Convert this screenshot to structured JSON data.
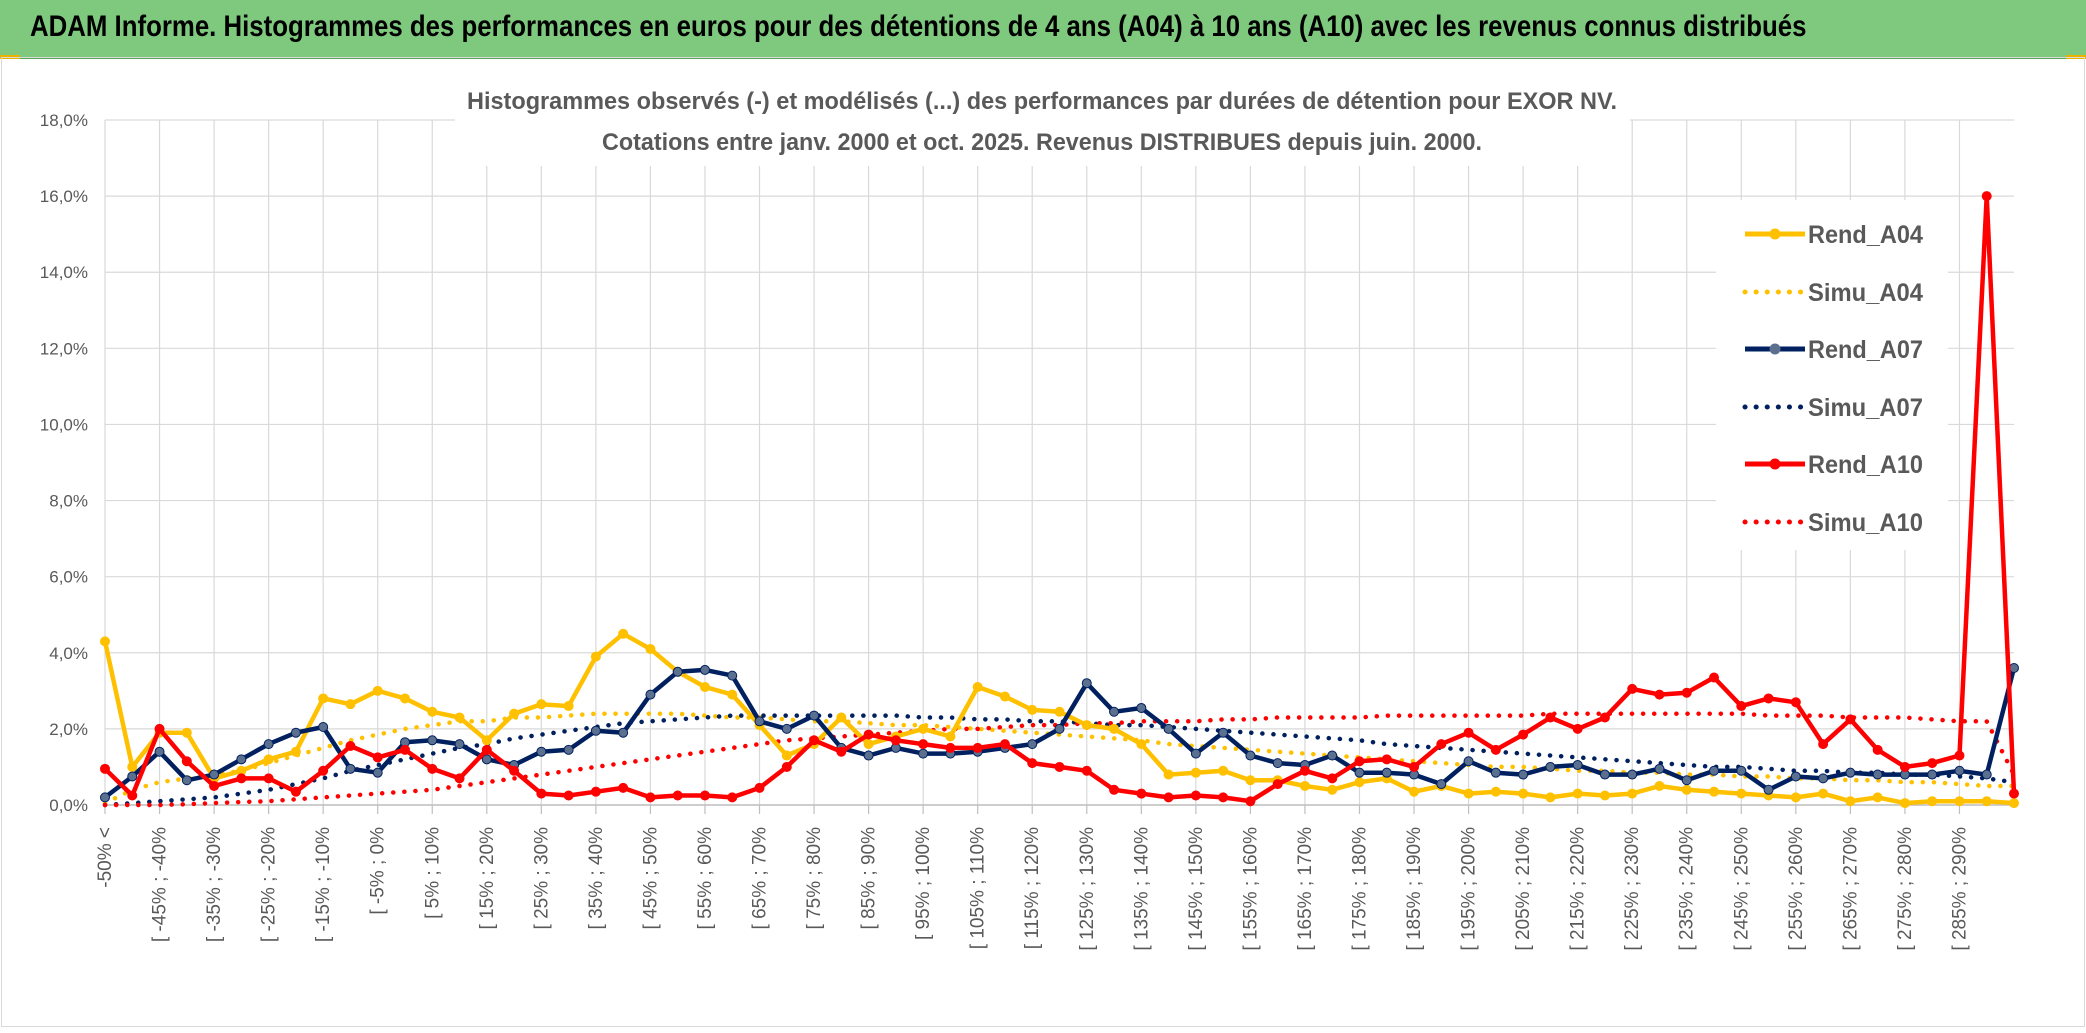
{
  "header": {
    "title": "ADAM Informe. Histogrammes des performances en euros pour des détentions de 4 ans (A04) à 10 ans (A10) avec les revenus connus distribués"
  },
  "colors": {
    "banner": "#7fc97f",
    "A04": "#ffc000",
    "A07": "#002060",
    "A10": "#ff0000",
    "grid": "#d9d9d9"
  },
  "chart_data": {
    "type": "line",
    "title": "Histogrammes observés (-) et modélisés (...) des performances par durées de détention pour EXOR NV.",
    "subtitle": "Cotations entre janv. 2000 et oct. 2025. Revenus DISTRIBUES depuis juin. 2000.",
    "ylim": [
      0,
      18
    ],
    "y_ticks": [
      "0,0%",
      "2,0%",
      "4,0%",
      "6,0%",
      "8,0%",
      "10,0%",
      "12,0%",
      "14,0%",
      "16,0%",
      "18,0%"
    ],
    "grid": true,
    "legend_position": "right",
    "x_tick_labels": [
      "-50% <",
      "[ -45% ; -40%",
      "[ -35% ; -30%",
      "[ -25% ; -20%",
      "[ -15% ; -10%",
      "[ -5% ; 0%",
      "[ 5% ; 10%",
      "[ 15% ; 20%",
      "[ 25% ; 30%",
      "[ 35% ; 40%",
      "[ 45% ; 50%",
      "[ 55% ; 60%",
      "[ 65% ; 70%",
      "[ 75% ; 80%",
      "[ 85% ; 90%",
      "[ 95% ; 100%",
      "[ 105% ; 110%",
      "[ 115% ; 120%",
      "[ 125% ; 130%",
      "[ 135% ; 140%",
      "[ 145% ; 150%",
      "[ 155% ; 160%",
      "[ 165% ; 170%",
      "[ 175% ; 180%",
      "[ 185% ; 190%",
      "[ 195% ; 200%",
      "[ 205% ; 210%",
      "[ 215% ; 220%",
      "[ 225% ; 230%",
      "[ 235% ; 240%",
      "[ 245% ; 250%",
      "[ 255% ; 260%",
      "[ 265% ; 270%",
      "[ 275% ; 280%",
      "[ 285% ; 290%"
    ],
    "n_points": 71,
    "series": [
      {
        "name": "Rend_A04",
        "style": "solid",
        "color": "#ffc000",
        "values": [
          4.3,
          1.0,
          1.9,
          1.9,
          0.7,
          0.9,
          1.2,
          1.4,
          2.8,
          2.65,
          3.0,
          2.8,
          2.45,
          2.3,
          1.7,
          2.4,
          2.65,
          2.6,
          3.9,
          4.5,
          4.1,
          3.5,
          3.1,
          2.9,
          2.1,
          1.3,
          1.6,
          2.3,
          1.6,
          1.8,
          2.0,
          1.8,
          3.1,
          2.85,
          2.5,
          2.45,
          2.1,
          2.0,
          1.6,
          0.8,
          0.85,
          0.9,
          0.65,
          0.65,
          0.5,
          0.4,
          0.6,
          0.7,
          0.35,
          0.5,
          0.3,
          0.35,
          0.3,
          0.2,
          0.3,
          0.25,
          0.3,
          0.5,
          0.4,
          0.35,
          0.3,
          0.25,
          0.2,
          0.3,
          0.1,
          0.2,
          0.05,
          0.1,
          0.1,
          0.1,
          0.05
        ]
      },
      {
        "name": "Simu_A04",
        "style": "dotted",
        "color": "#ffc000",
        "values": [
          0.05,
          0.4,
          0.6,
          0.7,
          0.8,
          0.9,
          1.1,
          1.3,
          1.5,
          1.7,
          1.85,
          2.0,
          2.1,
          2.2,
          2.2,
          2.3,
          2.3,
          2.35,
          2.4,
          2.4,
          2.4,
          2.4,
          2.35,
          2.3,
          2.3,
          2.25,
          2.2,
          2.2,
          2.15,
          2.1,
          2.1,
          2.05,
          2.0,
          1.95,
          1.9,
          1.85,
          1.8,
          1.75,
          1.7,
          1.6,
          1.55,
          1.5,
          1.45,
          1.4,
          1.35,
          1.3,
          1.25,
          1.2,
          1.15,
          1.1,
          1.05,
          1.0,
          1.0,
          0.95,
          0.9,
          0.9,
          0.85,
          0.85,
          0.8,
          0.8,
          0.75,
          0.75,
          0.7,
          0.7,
          0.65,
          0.65,
          0.6,
          0.6,
          0.55,
          0.5,
          0.5
        ]
      },
      {
        "name": "Rend_A07",
        "style": "solid",
        "color": "#002060",
        "values": [
          0.2,
          0.75,
          1.4,
          0.65,
          0.8,
          1.2,
          1.6,
          1.9,
          2.05,
          0.95,
          0.85,
          1.65,
          1.7,
          1.6,
          1.2,
          1.05,
          1.4,
          1.45,
          1.95,
          1.9,
          2.9,
          3.5,
          3.55,
          3.4,
          2.2,
          2.0,
          2.35,
          1.5,
          1.3,
          1.5,
          1.35,
          1.35,
          1.4,
          1.5,
          1.6,
          2.0,
          3.2,
          2.45,
          2.55,
          2.0,
          1.35,
          1.9,
          1.3,
          1.1,
          1.05,
          1.3,
          0.85,
          0.85,
          0.8,
          0.55,
          1.15,
          0.85,
          0.8,
          1.0,
          1.05,
          0.8,
          0.8,
          0.95,
          0.65,
          0.9,
          0.9,
          0.4,
          0.75,
          0.7,
          0.85,
          0.8,
          0.8,
          0.8,
          0.9,
          0.8,
          3.6
        ]
      },
      {
        "name": "Simu_A07",
        "style": "dotted",
        "color": "#002060",
        "values": [
          0.0,
          0.05,
          0.1,
          0.15,
          0.2,
          0.3,
          0.4,
          0.55,
          0.7,
          0.9,
          1.05,
          1.2,
          1.35,
          1.5,
          1.6,
          1.75,
          1.85,
          1.95,
          2.05,
          2.15,
          2.2,
          2.25,
          2.3,
          2.35,
          2.35,
          2.35,
          2.35,
          2.35,
          2.35,
          2.35,
          2.3,
          2.3,
          2.25,
          2.25,
          2.2,
          2.2,
          2.15,
          2.1,
          2.1,
          2.05,
          2.0,
          1.95,
          1.9,
          1.85,
          1.8,
          1.75,
          1.7,
          1.6,
          1.55,
          1.5,
          1.45,
          1.4,
          1.35,
          1.3,
          1.25,
          1.2,
          1.15,
          1.1,
          1.05,
          1.0,
          1.0,
          0.95,
          0.9,
          0.9,
          0.85,
          0.85,
          0.8,
          0.8,
          0.75,
          0.7,
          0.6
        ]
      },
      {
        "name": "Rend_A10",
        "style": "solid",
        "color": "#ff0000",
        "values": [
          0.95,
          0.25,
          2.0,
          1.15,
          0.5,
          0.7,
          0.7,
          0.35,
          0.9,
          1.55,
          1.25,
          1.45,
          0.95,
          0.7,
          1.45,
          0.9,
          0.3,
          0.25,
          0.35,
          0.45,
          0.2,
          0.25,
          0.25,
          0.2,
          0.45,
          1.0,
          1.7,
          1.4,
          1.85,
          1.7,
          1.6,
          1.5,
          1.5,
          1.6,
          1.1,
          1.0,
          0.9,
          0.4,
          0.3,
          0.2,
          0.25,
          0.2,
          0.1,
          0.55,
          0.9,
          0.7,
          1.15,
          1.2,
          1.0,
          1.6,
          1.9,
          1.45,
          1.85,
          2.3,
          2.0,
          2.3,
          3.05,
          2.9,
          2.95,
          3.35,
          2.6,
          2.8,
          2.7,
          1.6,
          2.25,
          1.45,
          1.0,
          1.1,
          1.3,
          16.0,
          0.3
        ]
      },
      {
        "name": "Simu_A10",
        "style": "dotted",
        "color": "#ff0000",
        "values": [
          0.0,
          0.0,
          0.0,
          0.02,
          0.05,
          0.08,
          0.1,
          0.15,
          0.2,
          0.25,
          0.3,
          0.35,
          0.4,
          0.5,
          0.6,
          0.7,
          0.8,
          0.9,
          1.0,
          1.1,
          1.2,
          1.3,
          1.4,
          1.5,
          1.6,
          1.7,
          1.75,
          1.8,
          1.85,
          1.9,
          1.95,
          2.0,
          2.0,
          2.05,
          2.1,
          2.1,
          2.15,
          2.15,
          2.2,
          2.2,
          2.2,
          2.25,
          2.25,
          2.3,
          2.3,
          2.3,
          2.3,
          2.35,
          2.35,
          2.35,
          2.35,
          2.35,
          2.35,
          2.4,
          2.4,
          2.4,
          2.4,
          2.4,
          2.4,
          2.4,
          2.4,
          2.35,
          2.35,
          2.35,
          2.3,
          2.3,
          2.3,
          2.25,
          2.2,
          2.2,
          0.8
        ]
      }
    ]
  }
}
